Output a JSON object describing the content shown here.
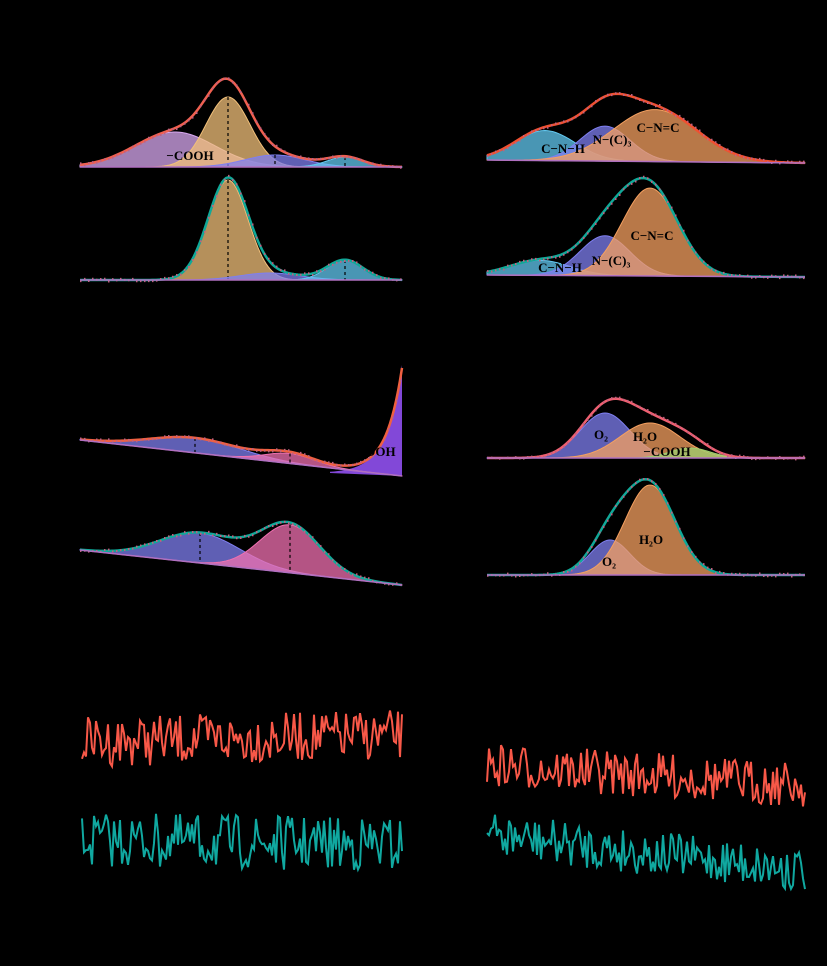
{
  "panels": [
    {
      "labels": [
        "−COOH"
      ]
    },
    {
      "labels": [
        "C−N−H",
        "N−(C)₃",
        "C−N=C"
      ]
    },
    {
      "labels": [
        "C−N−H",
        "N−(C)₃",
        "C−N=C"
      ]
    },
    {
      "labels": [
        "−COOH"
      ]
    },
    {
      "labels": [
        "O₂",
        "H₂O",
        "−COOH"
      ]
    },
    {
      "labels": [
        "H₂O",
        "O₂"
      ]
    }
  ]
}
